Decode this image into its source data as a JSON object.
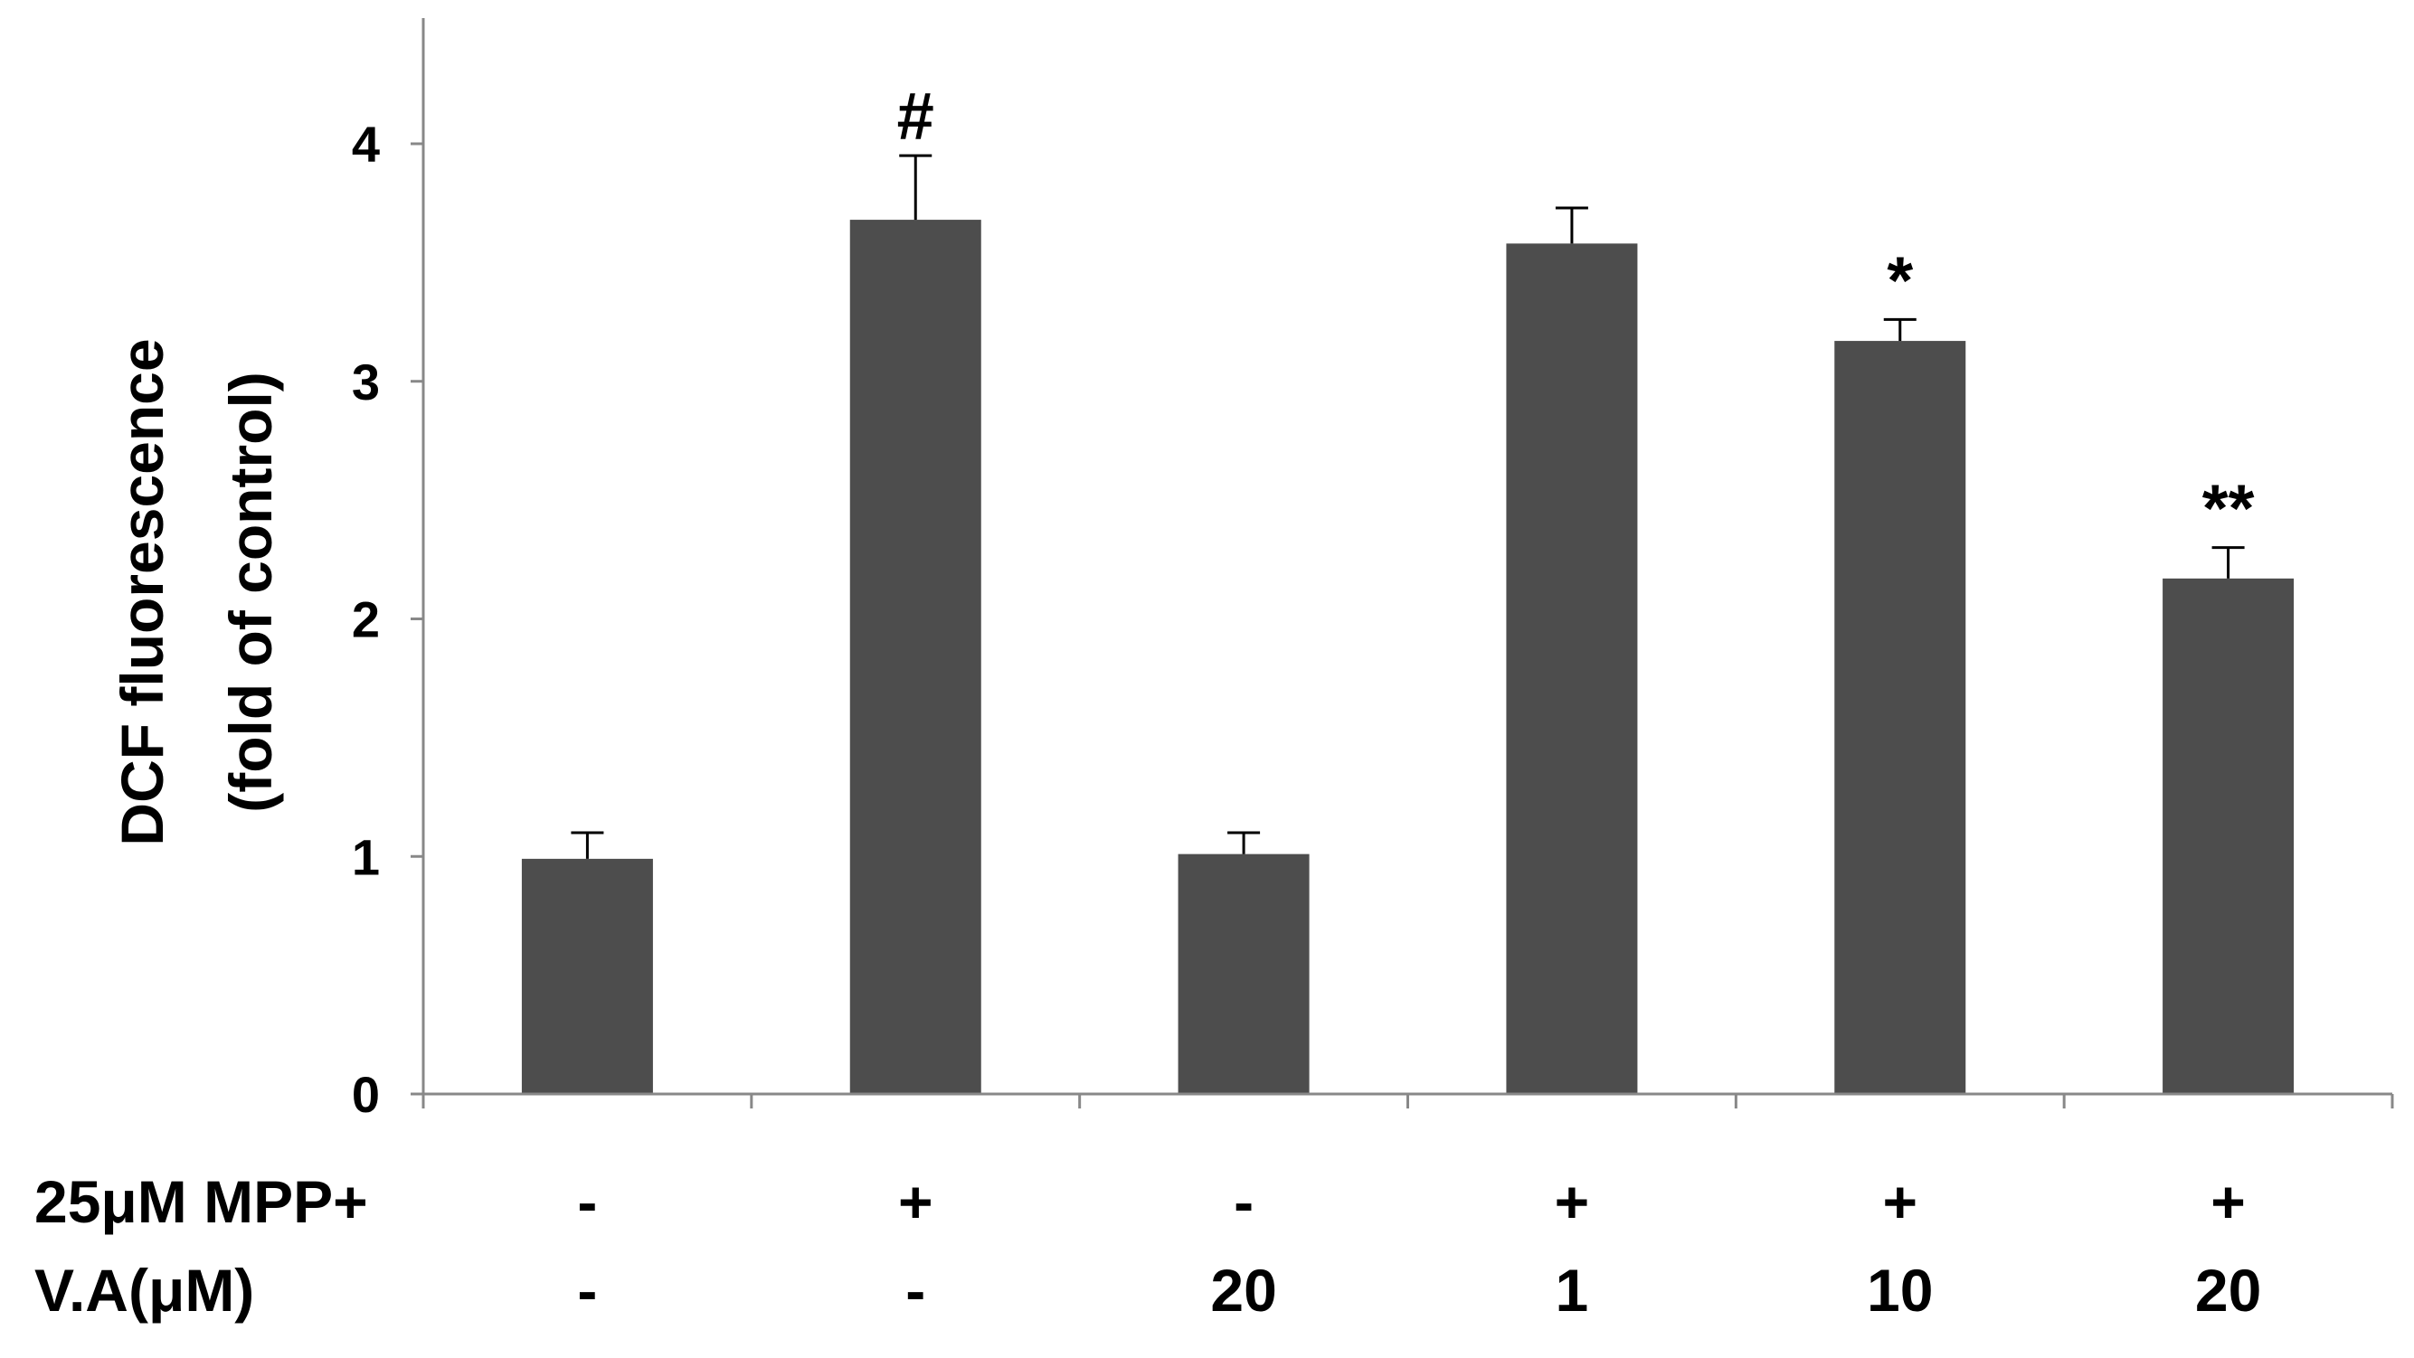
{
  "chart_data": {
    "type": "bar",
    "ylabel_lines": [
      "DCF fluorescence",
      "(fold of control)"
    ],
    "xlabel": "",
    "ylim": [
      0,
      4.5
    ],
    "yticks": [
      0,
      1,
      2,
      3,
      4
    ],
    "grid": false,
    "legend": "none",
    "bar_color": "#4d4d4d",
    "series": [
      {
        "values": [
          0.99,
          3.68,
          1.01,
          3.58,
          3.17,
          2.17
        ],
        "errors": [
          0.11,
          0.27,
          0.09,
          0.15,
          0.09,
          0.13
        ],
        "annotations": [
          "",
          "#",
          "",
          "",
          "*",
          "**"
        ]
      }
    ],
    "conditions": [
      {
        "label": "25μM MPP+",
        "values": [
          "-",
          "+",
          "-",
          "+",
          "+",
          "+"
        ]
      },
      {
        "label": "V.A(μM)",
        "values": [
          "-",
          "-",
          "20",
          "1",
          "10",
          "20"
        ]
      }
    ]
  }
}
